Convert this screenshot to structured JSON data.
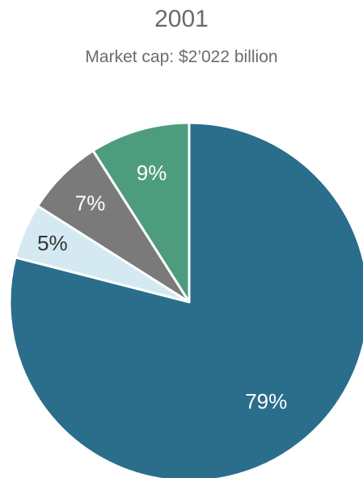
{
  "chart_data": {
    "type": "pie",
    "title": "2001",
    "subtitle": "Market cap: $2’022 billion",
    "slices": [
      {
        "label": "79%",
        "value": 79,
        "color": "#2a6e8b",
        "label_color": "#ffffff"
      },
      {
        "label": "5%",
        "value": 5,
        "color": "#d4e9f1",
        "label_color": "#333333"
      },
      {
        "label": "7%",
        "value": 7,
        "color": "#7a7a7a",
        "label_color": "#ffffff"
      },
      {
        "label": "9%",
        "value": 9,
        "color": "#4e9c7e",
        "label_color": "#ffffff"
      }
    ]
  }
}
